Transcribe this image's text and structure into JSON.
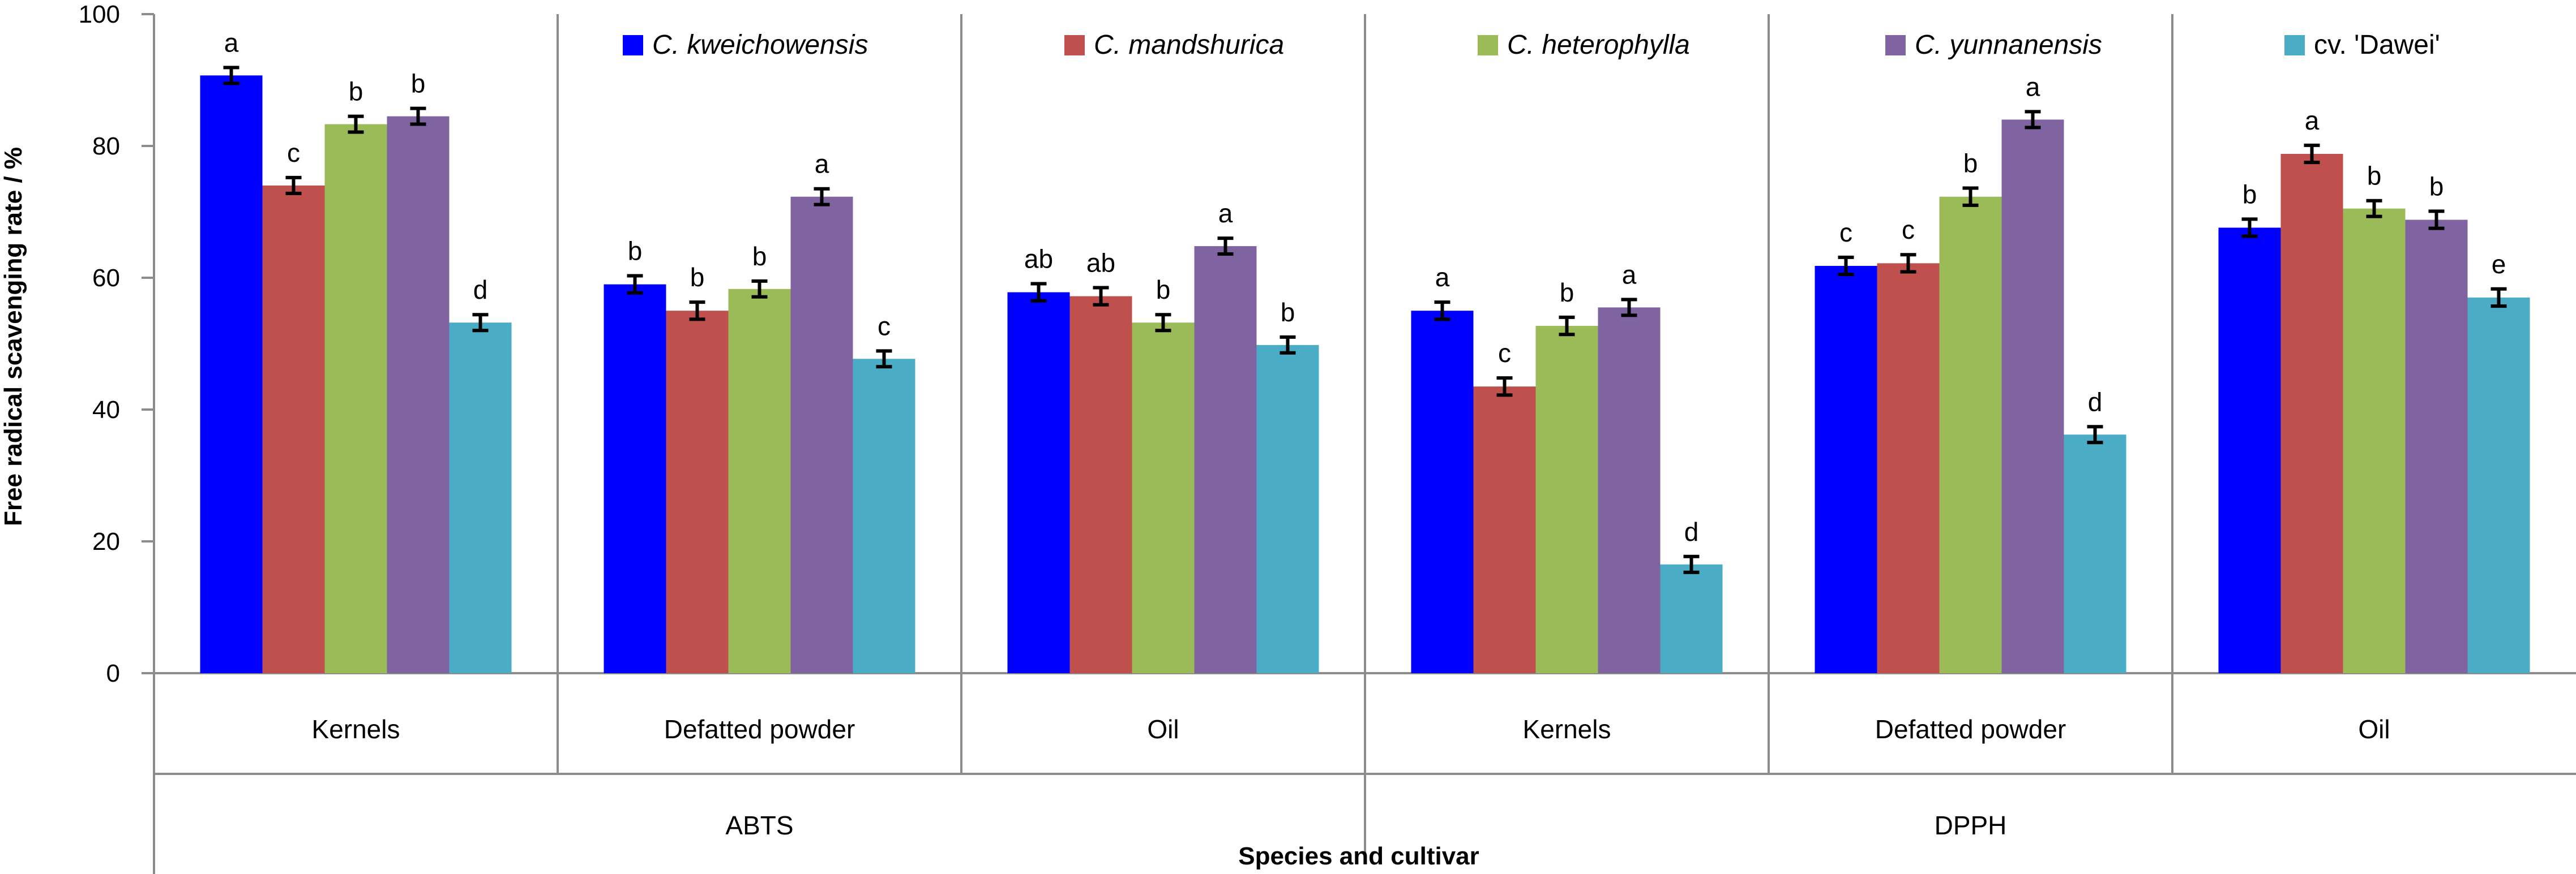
{
  "chart_data": {
    "type": "bar",
    "ylabel": "Free radical scavenging rate / %",
    "xlabel": "Species and cultivar",
    "ylim": [
      0,
      100
    ],
    "yticks": [
      0,
      20,
      40,
      60,
      80,
      100
    ],
    "grid": false,
    "legend_position": "top",
    "groups": [
      "ABTS",
      "DPPH"
    ],
    "categories": [
      "Kernels",
      "Defatted powder",
      "Oil",
      "Kernels",
      "Defatted powder",
      "Oil"
    ],
    "category_group": [
      0,
      0,
      0,
      1,
      1,
      1
    ],
    "series": [
      {
        "name": "C. kweichowensis",
        "italic": true,
        "color": "#0000ff",
        "values": [
          90.7,
          59.0,
          57.8,
          55.0,
          61.8,
          67.6
        ],
        "errors": [
          1.2,
          1.3,
          1.3,
          1.3,
          1.3,
          1.3
        ],
        "letters": [
          "a",
          "b",
          "ab",
          "a",
          "c",
          "b"
        ]
      },
      {
        "name": "C. mandshurica",
        "italic": true,
        "color": "#c0504d",
        "values": [
          74.0,
          55.0,
          57.2,
          43.5,
          62.2,
          78.8
        ],
        "errors": [
          1.2,
          1.3,
          1.3,
          1.3,
          1.3,
          1.3
        ],
        "letters": [
          "c",
          "b",
          "ab",
          "c",
          "c",
          "a"
        ]
      },
      {
        "name": "C. heterophylla",
        "italic": true,
        "color": "#9bbb59",
        "values": [
          83.3,
          58.3,
          53.2,
          52.7,
          72.3,
          70.5
        ],
        "errors": [
          1.2,
          1.2,
          1.2,
          1.3,
          1.3,
          1.2
        ],
        "letters": [
          "b",
          "b",
          "b",
          "b",
          "b",
          "b"
        ]
      },
      {
        "name": "C. yunnanensis",
        "italic": true,
        "color": "#8064a2",
        "values": [
          84.5,
          72.3,
          64.8,
          55.5,
          84.0,
          68.8
        ],
        "errors": [
          1.2,
          1.2,
          1.2,
          1.2,
          1.2,
          1.3
        ],
        "letters": [
          "b",
          "a",
          "a",
          "a",
          "a",
          "b"
        ]
      },
      {
        "name": "cv. 'Dawei'",
        "italic": false,
        "color": "#4bacc6",
        "values": [
          53.2,
          47.7,
          49.8,
          16.5,
          36.2,
          57.0
        ],
        "errors": [
          1.2,
          1.2,
          1.2,
          1.2,
          1.2,
          1.3
        ],
        "letters": [
          "d",
          "c",
          "b",
          "d",
          "d",
          "e"
        ]
      }
    ]
  }
}
